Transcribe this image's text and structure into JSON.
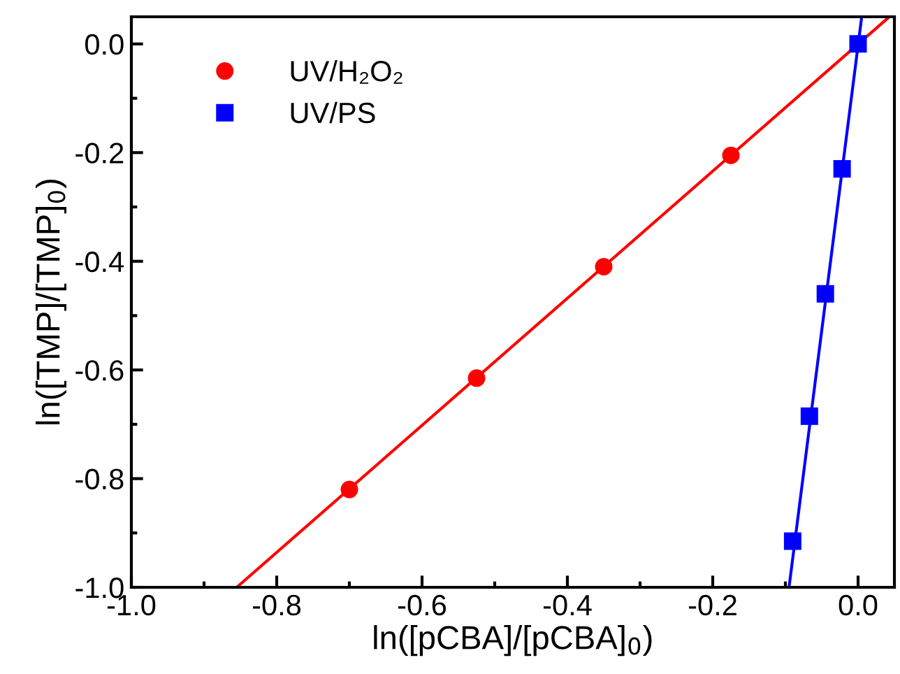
{
  "chart_data": {
    "type": "scatter",
    "xlabel": "ln([pCBA]/[pCBA]$_{0}$)",
    "ylabel": "ln([TMP]/[TMP]$_{0}$)",
    "xlim": [
      -1.0,
      0.05
    ],
    "ylim": [
      -1.0,
      0.05
    ],
    "xticks": [
      {
        "value": -1.0,
        "label": "-1.0"
      },
      {
        "value": -0.9,
        "label": null
      },
      {
        "value": -0.8,
        "label": "-0.8"
      },
      {
        "value": -0.7,
        "label": null
      },
      {
        "value": -0.6,
        "label": "-0.6"
      },
      {
        "value": -0.5,
        "label": null
      },
      {
        "value": -0.4,
        "label": "-0.4"
      },
      {
        "value": -0.3,
        "label": null
      },
      {
        "value": -0.2,
        "label": "-0.2"
      },
      {
        "value": -0.1,
        "label": null
      },
      {
        "value": 0.0,
        "label": "0.0"
      }
    ],
    "yticks": [
      {
        "value": -1.0,
        "label": "-1.0"
      },
      {
        "value": -0.9,
        "label": null
      },
      {
        "value": -0.8,
        "label": "-0.8"
      },
      {
        "value": -0.7,
        "label": null
      },
      {
        "value": -0.6,
        "label": "-0.6"
      },
      {
        "value": -0.5,
        "label": null
      },
      {
        "value": -0.4,
        "label": "-0.4"
      },
      {
        "value": -0.3,
        "label": null
      },
      {
        "value": -0.2,
        "label": "-0.2"
      },
      {
        "value": -0.1,
        "label": null
      },
      {
        "value": 0.0,
        "label": "0.0"
      }
    ],
    "legend": "top left",
    "grid": false,
    "series": [
      {
        "name": "UV/H₂O₂",
        "color": "#ff0000",
        "marker": "circle",
        "x": [
          -0.7,
          -0.525,
          -0.35,
          -0.175
        ],
        "values": [
          -0.82,
          -0.615,
          -0.41,
          -0.205
        ]
      },
      {
        "name": "UV/PS",
        "color": "#0000ff",
        "marker": "square",
        "x": [
          0.0,
          -0.022,
          -0.045,
          -0.067,
          -0.09
        ],
        "values": [
          0.0,
          -0.23,
          -0.46,
          -0.685,
          -0.915
        ]
      },
      {
        "type": "line",
        "color": "#ff0000",
        "marker": "none",
        "x": [
          -0.855,
          0.043
        ],
        "values": [
          -1.0,
          0.05
        ]
      },
      {
        "type": "line",
        "color": "#0000ff",
        "marker": "none",
        "x": [
          -0.095,
          0.005
        ],
        "values": [
          -1.0,
          0.05
        ]
      }
    ]
  }
}
